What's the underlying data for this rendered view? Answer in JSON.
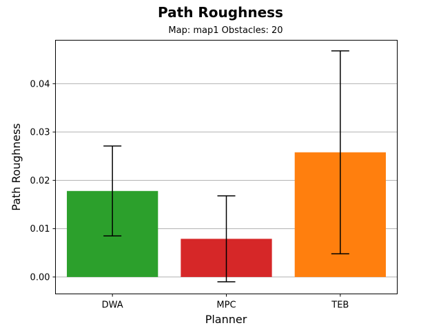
{
  "chart_data": {
    "type": "bar",
    "title": "Path Roughness",
    "subtitle": "Map: map1 Obstacles: 20",
    "xlabel": "Planner",
    "ylabel": "Path Roughness",
    "categories": [
      "DWA",
      "MPC",
      "TEB"
    ],
    "values": [
      0.0178,
      0.0079,
      0.0258
    ],
    "error": [
      0.0093,
      0.0089,
      0.021
    ],
    "colors": [
      "#2ca02c",
      "#d62728",
      "#ff7f0e"
    ],
    "ylim": [
      -0.0035,
      0.049
    ],
    "yticks": [
      0.0,
      0.01,
      0.02,
      0.03,
      0.04
    ],
    "ytick_labels": [
      "0.00",
      "0.01",
      "0.02",
      "0.03",
      "0.04"
    ],
    "grid": "y"
  }
}
